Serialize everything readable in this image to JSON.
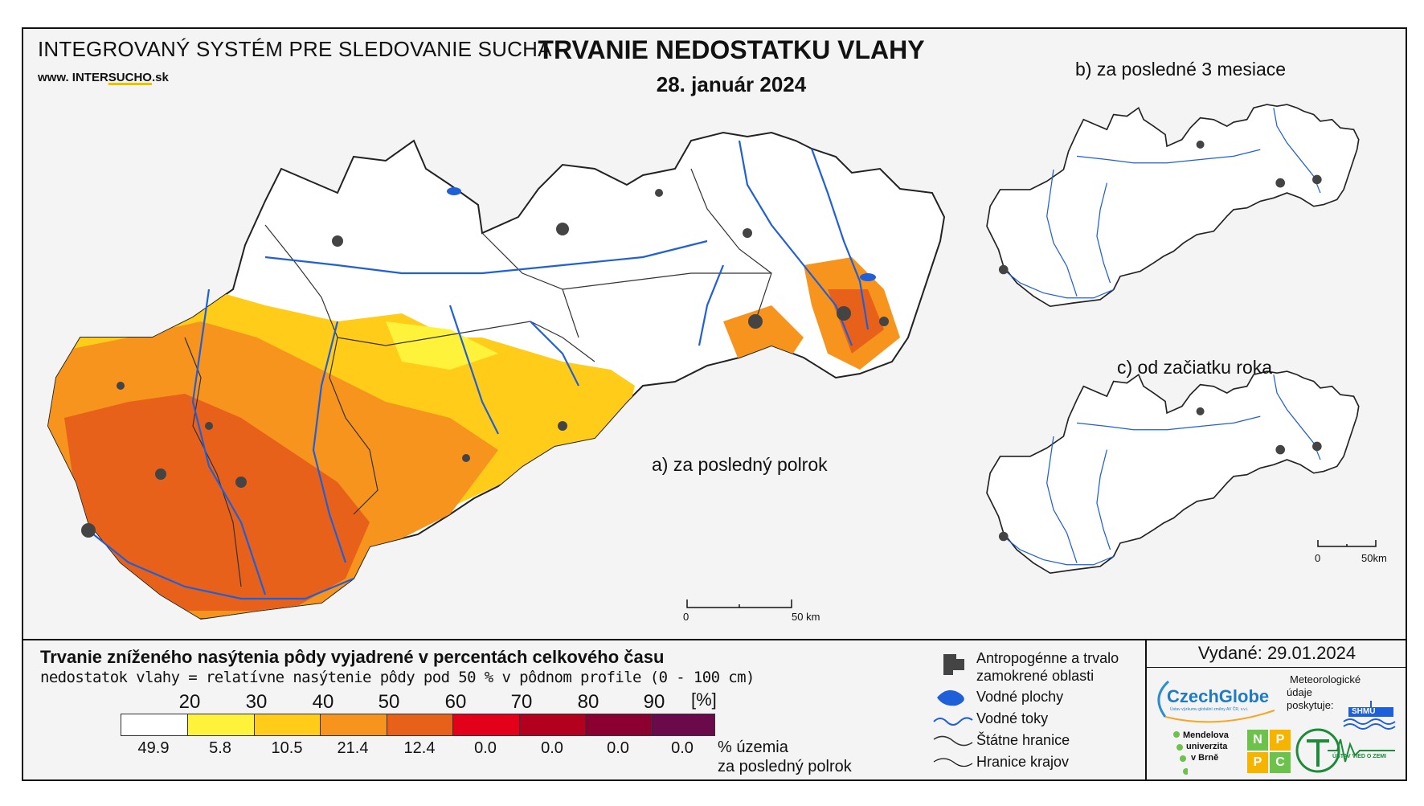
{
  "header": {
    "system_title": "INTEGROVANÝ SYSTÉM PRE SLEDOVANIE SUCHA",
    "website_prefix": "www. INTER",
    "website_highlight": "SUCHO",
    "website_suffix": ".sk",
    "main_title": "TRVANIE NEDOSTATKU VLAHY",
    "date": "28. január 2024"
  },
  "panels": {
    "a_label": "a) za posledný polrok",
    "b_label": "b) za posledné 3 mesiace",
    "c_label": "c) od začiatku roka"
  },
  "scale_bars": {
    "main": {
      "zero": "0",
      "end": "50 km"
    },
    "small": {
      "zero": "0",
      "end": "50km"
    }
  },
  "legend": {
    "title": "Trvanie zníženého nasýtenia pôdy vyjadrené v percentách celkového času",
    "subtitle": "nedostatok vlahy = relatívne nasýtenie pôdy pod 50 % v pôdnom profile (0 - 100 cm)",
    "unit": "[%]",
    "ticks": [
      "20",
      "30",
      "40",
      "50",
      "60",
      "70",
      "80",
      "90"
    ],
    "classes": [
      {
        "color": "#ffffff",
        "percent": "49.9"
      },
      {
        "color": "#fff23a",
        "percent": "5.8"
      },
      {
        "color": "#ffcc1a",
        "percent": "10.5"
      },
      {
        "color": "#f7941d",
        "percent": "21.4"
      },
      {
        "color": "#e8611a",
        "percent": "12.4"
      },
      {
        "color": "#e3001b",
        "percent": "0.0"
      },
      {
        "color": "#b3001e",
        "percent": "0.0"
      },
      {
        "color": "#8b0030",
        "percent": "0.0"
      },
      {
        "color": "#6b0a4a",
        "percent": "0.0"
      }
    ],
    "percent_label_1": "% územia",
    "percent_label_2": "za posledný polrok"
  },
  "map_legend": {
    "anthropogenic_1": "Antropogénne a trvalo",
    "anthropogenic_2": "zamokrené oblasti",
    "water_bodies": "Vodné plochy",
    "streams": "Vodné toky",
    "state_border": "Štátne hranice",
    "region_border": "Hranice krajov"
  },
  "publication": {
    "issued": "Vydané: 29.01.2024",
    "czechglobe": "CzechGlobe",
    "czechglobe_sub": "Ústav výzkumu globální změny AV ČR, v.v.i.",
    "meteo_1": "Meteorologické",
    "meteo_2": "údaje",
    "meteo_3": "poskytuje:",
    "shmu": "SHMÚ",
    "mendel_1": "Mendelova",
    "mendel_2": "univerzita",
    "mendel_3": "v Brně",
    "nppc": [
      "N",
      "P",
      "P",
      "C"
    ],
    "uvz": "ÚSTAV VIED O ZEMI"
  },
  "colors": {
    "water": "#1f5fd8",
    "urban": "#444444",
    "border": "#222222"
  }
}
